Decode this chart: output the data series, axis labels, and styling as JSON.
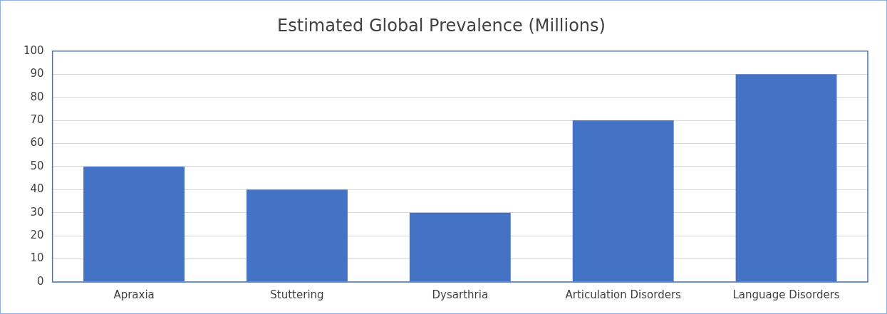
{
  "chart_data": {
    "type": "bar",
    "title": "Estimated Global Prevalence (Millions)",
    "categories": [
      "Apraxia",
      "Stuttering",
      "Dysarthria",
      "Articulation Disorders",
      "Language Disorders"
    ],
    "values": [
      50,
      40,
      30,
      70,
      90
    ],
    "color": "#4472c4",
    "ylim": [
      0,
      100
    ],
    "yticks": [
      0,
      10,
      20,
      30,
      40,
      50,
      60,
      70,
      80,
      90,
      100
    ],
    "grid": "y",
    "legend": false
  }
}
